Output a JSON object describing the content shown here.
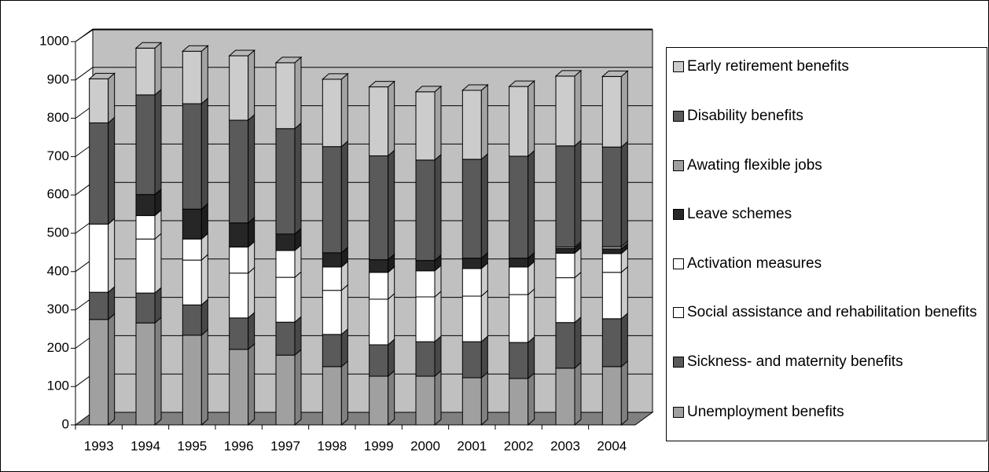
{
  "chart_data": {
    "type": "bar3d_stacked",
    "categories": [
      "1993",
      "1994",
      "1995",
      "1996",
      "1997",
      "1998",
      "1999",
      "2000",
      "2001",
      "2002",
      "2003",
      "2004"
    ],
    "series": [
      {
        "name": "Unemployment benefits",
        "color": "#a0a0a0",
        "values": [
          275,
          266,
          234,
          197,
          182,
          152,
          127,
          127,
          123,
          121,
          148,
          152
        ]
      },
      {
        "name": "Sickness- and maternity benefits",
        "color": "#5a5a5a",
        "values": [
          71,
          78,
          79,
          82,
          86,
          84,
          82,
          90,
          94,
          94,
          119,
          125
        ]
      },
      {
        "name": "Social assistance and rehabilitation benefits",
        "color": "#ffffff",
        "values": [
          178,
          141,
          117,
          117,
          117,
          115,
          119,
          117,
          119,
          125,
          117,
          121
        ]
      },
      {
        "name": "Activation measures",
        "color": "#ffffff",
        "values": [
          0,
          61,
          55,
          68,
          70,
          61,
          70,
          68,
          72,
          72,
          64,
          49
        ]
      },
      {
        "name": "Leave schemes",
        "color": "#262626",
        "values": [
          0,
          55,
          78,
          63,
          43,
          37,
          33,
          27,
          27,
          23,
          12,
          12
        ]
      },
      {
        "name": "Awating flexible jobs",
        "color": "#a0a0a0",
        "values": [
          0,
          0,
          0,
          0,
          0,
          0,
          0,
          0,
          0,
          0,
          4,
          6
        ]
      },
      {
        "name": "Disability benefits",
        "color": "#5a5a5a",
        "values": [
          264,
          260,
          275,
          268,
          275,
          277,
          271,
          262,
          258,
          266,
          264,
          260
        ]
      },
      {
        "name": "Early retirement benefits",
        "color": "#cccccc",
        "values": [
          115,
          122,
          137,
          168,
          172,
          176,
          180,
          178,
          180,
          182,
          182,
          184
        ]
      }
    ],
    "ylim": [
      0,
      1000
    ],
    "yticks": [
      0,
      100,
      200,
      300,
      400,
      500,
      600,
      700,
      800,
      900,
      1000
    ],
    "grid": true
  }
}
